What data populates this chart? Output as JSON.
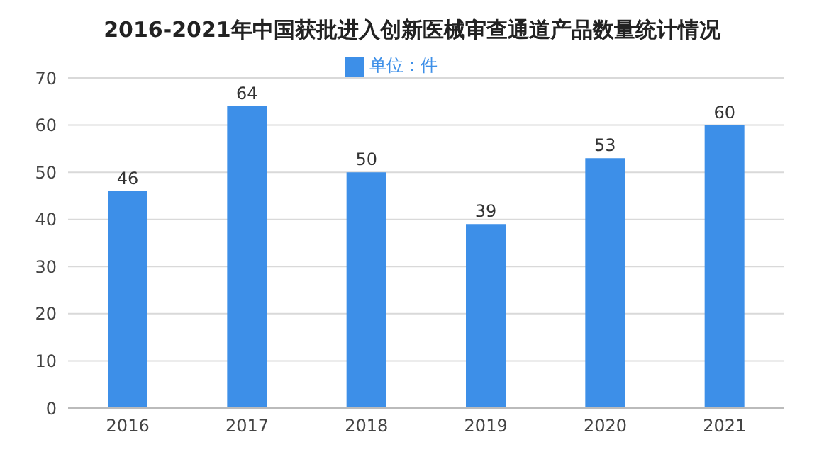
{
  "chart_data": {
    "type": "bar",
    "title": "2016-2021年中国获批进入创新医械审查通道产品数量统计情况",
    "categories": [
      "2016",
      "2017",
      "2018",
      "2019",
      "2020",
      "2021"
    ],
    "series": [
      {
        "name": "单位：件",
        "color": "#3d8fe8",
        "values": [
          46,
          64,
          50,
          39,
          53,
          60
        ]
      }
    ],
    "ylim": [
      0,
      70
    ],
    "yticks": [
      0,
      10,
      20,
      30,
      40,
      50,
      60,
      70
    ],
    "grid": "y",
    "legend": "top",
    "data_labels": true
  }
}
